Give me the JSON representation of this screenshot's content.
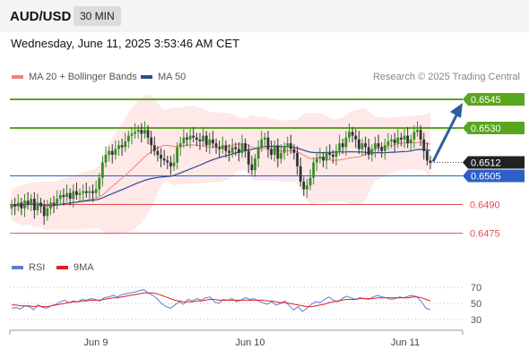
{
  "header": {
    "pair": "AUD/USD",
    "timeframe": "30 MIN"
  },
  "date_label": "Wednesday, June 11, 2025 3:53:46 AM CET",
  "legend": {
    "ma20": {
      "label": "MA 20 + Bollinger Bands",
      "color": "#f08080"
    },
    "ma50": {
      "label": "MA 50",
      "color": "#2d4f8a"
    }
  },
  "credit": "Research © 2025 Trading Central",
  "rsi_legend": {
    "rsi": {
      "label": "RSI",
      "color": "#5b7fd6"
    },
    "ma9": {
      "label": "9MA",
      "color": "#e02020"
    }
  },
  "chart_data": {
    "type": "candlestick",
    "ylim": [
      0.6465,
      0.6552
    ],
    "x_labels": [
      "Jun 9",
      "Jun 10",
      "Jun 11"
    ],
    "current_price": {
      "value": "0.6512"
    },
    "levels": [
      {
        "value": "0.6545",
        "role": "resistance",
        "color": "#5aa51e",
        "label_style": "box"
      },
      {
        "value": "0.6530",
        "role": "resistance",
        "color": "#5aa51e",
        "label_style": "box"
      },
      {
        "value": "0.6505",
        "role": "pivot",
        "color": "#2d5fc9",
        "label_style": "box"
      },
      {
        "value": "0.6490",
        "role": "support",
        "color": "#e05050",
        "label_style": "text"
      },
      {
        "value": "0.6475",
        "role": "support",
        "color": "#e05050",
        "label_style": "text"
      }
    ],
    "close": [
      0.649,
      0.6489,
      0.6491,
      0.6488,
      0.6492,
      0.649,
      0.6493,
      0.6487,
      0.6491,
      0.6489,
      0.6484,
      0.6488,
      0.6491,
      0.649,
      0.6493,
      0.6495,
      0.6494,
      0.6496,
      0.6493,
      0.6497,
      0.6495,
      0.6496,
      0.6497,
      0.6496,
      0.6497,
      0.6496,
      0.6498,
      0.6504,
      0.6512,
      0.6516,
      0.6518,
      0.6516,
      0.6519,
      0.6521,
      0.652,
      0.6523,
      0.6526,
      0.6527,
      0.6528,
      0.6529,
      0.6527,
      0.6529,
      0.6525,
      0.6521,
      0.6518,
      0.6516,
      0.6514,
      0.6513,
      0.6512,
      0.651,
      0.6512,
      0.652,
      0.6522,
      0.6525,
      0.6524,
      0.6526,
      0.6525,
      0.6524,
      0.6523,
      0.6526,
      0.6521,
      0.6524,
      0.6522,
      0.652,
      0.6519,
      0.6521,
      0.6518,
      0.6517,
      0.652,
      0.6519,
      0.6517,
      0.6522,
      0.6518,
      0.6511,
      0.6508,
      0.6514,
      0.652,
      0.6524,
      0.6525,
      0.6519,
      0.6516,
      0.6521,
      0.6514,
      0.6517,
      0.652,
      0.6522,
      0.6519,
      0.6517,
      0.651,
      0.6502,
      0.6498,
      0.65,
      0.6504,
      0.6512,
      0.6514,
      0.6515,
      0.6513,
      0.6517,
      0.6516,
      0.6515,
      0.6518,
      0.6522,
      0.652,
      0.6525,
      0.6528,
      0.6526,
      0.6524,
      0.6519,
      0.6522,
      0.652,
      0.6516,
      0.6519,
      0.6522,
      0.652,
      0.6518,
      0.6521,
      0.6523,
      0.6524,
      0.6522,
      0.6525,
      0.6524,
      0.6526,
      0.6522,
      0.6524,
      0.6528,
      0.6529,
      0.6524,
      0.6518,
      0.6513,
      0.6512
    ],
    "rsi": {
      "ticks": [
        70,
        50,
        30
      ],
      "values": [
        44,
        45,
        43,
        47,
        46,
        42,
        48,
        45,
        44,
        47,
        49,
        52,
        54,
        51,
        53,
        52,
        55,
        54,
        56,
        55,
        53,
        57,
        58,
        60,
        58,
        61,
        62,
        63,
        64,
        66,
        67,
        63,
        60,
        56,
        50,
        46,
        44,
        48,
        52,
        49,
        55,
        53,
        56,
        54,
        57,
        58,
        52,
        50,
        55,
        54,
        56,
        52,
        54,
        57,
        55,
        56,
        53,
        51,
        49,
        52,
        48,
        50,
        53,
        47,
        42,
        46,
        40,
        44,
        49,
        52,
        51,
        55,
        58,
        54,
        52,
        56,
        59,
        57,
        55,
        57,
        56,
        55,
        58,
        60,
        58,
        57,
        55,
        56,
        58,
        57,
        59,
        60,
        58,
        52,
        44,
        42
      ]
    },
    "ma9": {
      "values": [
        48,
        48,
        47,
        47,
        47,
        46,
        47,
        46,
        46,
        47,
        48,
        49,
        50,
        51,
        52,
        52,
        53,
        53,
        54,
        54,
        54,
        55,
        56,
        57,
        57,
        58,
        59,
        60,
        61,
        62,
        63,
        63,
        63,
        62,
        60,
        58,
        56,
        54,
        53,
        52,
        52,
        52,
        53,
        53,
        54,
        55,
        55,
        54,
        54,
        54,
        54,
        54,
        54,
        54,
        54,
        54,
        54,
        54,
        53,
        53,
        52,
        51,
        51,
        50,
        49,
        48,
        47,
        46,
        46,
        47,
        48,
        49,
        51,
        52,
        53,
        54,
        55,
        55,
        55,
        56,
        56,
        56,
        56,
        57,
        57,
        57,
        57,
        57,
        57,
        57,
        57,
        58,
        58,
        57,
        55,
        53
      ]
    }
  }
}
